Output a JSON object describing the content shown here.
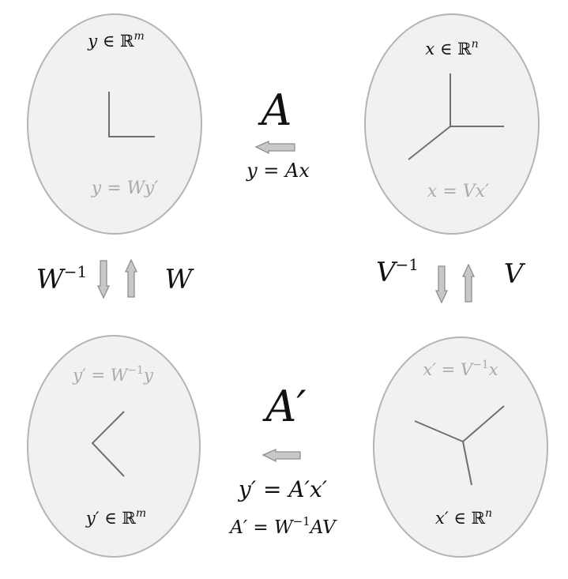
{
  "spaces": {
    "y": {
      "membership": {
        "var": "y",
        "set": "ℝ",
        "sup": "m"
      },
      "transform": {
        "lhs": "y",
        "rhs": "Wy′"
      }
    },
    "x": {
      "membership": {
        "var": "x",
        "set": "ℝ",
        "sup": "n"
      },
      "transform": {
        "lhs": "x",
        "rhs": "Vx′"
      }
    },
    "y_prime": {
      "membership": {
        "var": "y′",
        "set": "ℝ",
        "sup": "m"
      },
      "transform": {
        "lhs": "y′",
        "rhs": "W",
        "rhs_sup": "−1",
        "rhs_tail": "y"
      }
    },
    "x_prime": {
      "membership": {
        "var": "x′",
        "set": "ℝ",
        "sup": "n"
      },
      "transform": {
        "lhs": "x′",
        "rhs": "V",
        "rhs_sup": "−1",
        "rhs_tail": "x"
      }
    }
  },
  "maps": {
    "top": {
      "name": "A",
      "lhs": "y",
      "rhs": "Ax"
    },
    "bottom": {
      "name": "A′",
      "lhs": "y′",
      "rhs": "A′x′",
      "def_lhs": "A′",
      "def_w": "W",
      "def_sup": "−1",
      "def_tail": "AV"
    },
    "left": {
      "inverse": "W",
      "inverse_sup": "−1",
      "forward": "W"
    },
    "right": {
      "inverse": "V",
      "inverse_sup": "−1",
      "forward": "V"
    }
  },
  "colors": {
    "blob_fill": "#f1f1f1",
    "blob_stroke": "#b4b4b4",
    "arrow_fill": "#c8c8c8",
    "arrow_stroke": "#8e8e8e",
    "axis_stroke": "#707070",
    "text_dark": "#111111",
    "text_grey": "#aaaaaa"
  },
  "icons": [
    "arrow-left-icon",
    "arrow-down-icon",
    "arrow-up-icon"
  ]
}
